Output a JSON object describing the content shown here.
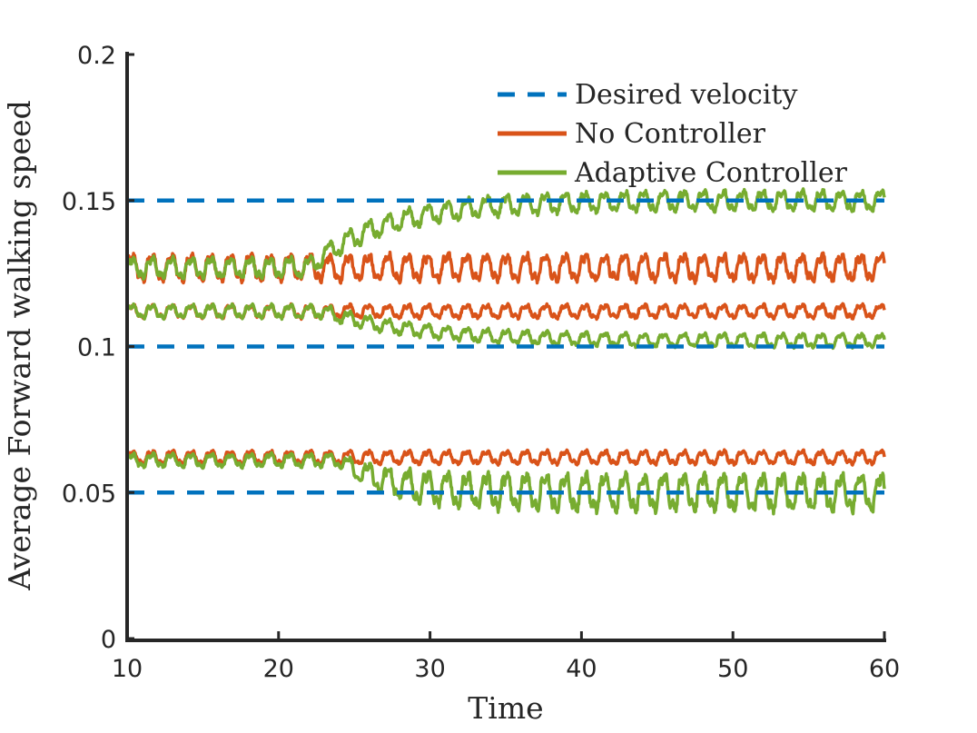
{
  "chart_data": {
    "type": "line",
    "title": "",
    "xlabel": "Time",
    "ylabel": "Average Forward walking speed",
    "xlim": [
      10,
      60
    ],
    "ylim": [
      0,
      0.2
    ],
    "xticks": [
      10,
      20,
      30,
      40,
      50,
      60
    ],
    "xtick_labels": [
      "10",
      "20",
      "30",
      "40",
      "50",
      "60"
    ],
    "yticks": [
      0,
      0.05,
      0.1,
      0.15,
      0.2
    ],
    "ytick_labels": [
      "0",
      "0.05",
      "0.1",
      "0.15",
      "0.2"
    ],
    "grid": false,
    "legend_position": "top-right",
    "legend": [
      "Desired velocity",
      "No Controller",
      "Adaptive Controller"
    ],
    "colors": {
      "desired": "#0072BD",
      "no_controller": "#D95319",
      "adaptive": "#77AC30",
      "axis": "#262626"
    },
    "series": [
      {
        "name": "Desired velocity",
        "style": "dashed",
        "color": "#0072BD",
        "x": [
          10,
          60
        ],
        "values": [
          0.15,
          0.15
        ]
      },
      {
        "name": "Desired velocity",
        "style": "dashed",
        "color": "#0072BD",
        "x": [
          10,
          60
        ],
        "values": [
          0.1,
          0.1
        ]
      },
      {
        "name": "Desired velocity",
        "style": "dashed",
        "color": "#0072BD",
        "x": [
          10,
          60
        ],
        "values": [
          0.05,
          0.05
        ]
      },
      {
        "name": "No Controller",
        "style": "solid",
        "color": "#D95319",
        "mean": 0.127,
        "amplitude": 0.004,
        "period": 1.3
      },
      {
        "name": "No Controller",
        "style": "solid",
        "color": "#D95319",
        "mean": 0.112,
        "amplitude": 0.002,
        "period": 1.3
      },
      {
        "name": "No Controller",
        "style": "solid",
        "color": "#D95319",
        "mean": 0.062,
        "amplitude": 0.002,
        "period": 1.3
      },
      {
        "name": "Adaptive Controller",
        "style": "solid",
        "color": "#77AC30",
        "start_value": 0.127,
        "end_value": 0.15,
        "transition_start": 22,
        "time_constant": 5,
        "amplitude": 0.003,
        "period": 1.3
      },
      {
        "name": "Adaptive Controller",
        "style": "solid",
        "color": "#77AC30",
        "start_value": 0.112,
        "end_value": 0.102,
        "transition_start": 23,
        "time_constant": 6,
        "amplitude": 0.002,
        "period": 1.3
      },
      {
        "name": "Adaptive Controller",
        "style": "solid",
        "color": "#77AC30",
        "start_value": 0.061,
        "end_value": 0.05,
        "transition_start": 24,
        "time_constant": 3,
        "amplitude": 0.002,
        "amplitude_end": 0.0055,
        "period": 1.3
      }
    ]
  }
}
